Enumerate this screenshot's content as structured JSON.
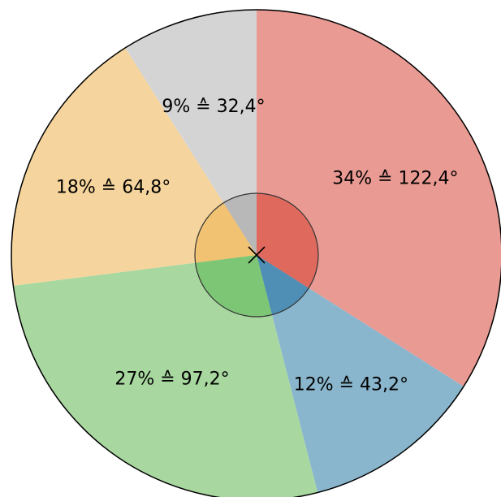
{
  "chart_data": {
    "type": "pie",
    "start_angle_deg": 0,
    "direction": "clockwise",
    "slices": [
      {
        "label": "34% ≙ 122,4°",
        "percent": 34,
        "degrees": 122.4,
        "color": "#e99a93",
        "inner_color": "#e0695e"
      },
      {
        "label": "12% ≙ 43,2°",
        "percent": 12,
        "degrees": 43.2,
        "color": "#8ab6cd",
        "inner_color": "#4f8fb5"
      },
      {
        "label": "27% ≙ 97,2°",
        "percent": 27,
        "degrees": 97.2,
        "color": "#a8d8a0",
        "inner_color": "#7dc675"
      },
      {
        "label": "18% ≙ 64,8°",
        "percent": 18,
        "degrees": 64.8,
        "color": "#f5d59d",
        "inner_color": "#f1c272"
      },
      {
        "label": "9% ≙ 32,4°",
        "percent": 9,
        "degrees": 32.4,
        "color": "#d4d4d4",
        "inner_color": "#b8b8b8"
      }
    ],
    "outline_color": "#000000",
    "center_marker": "cross"
  }
}
